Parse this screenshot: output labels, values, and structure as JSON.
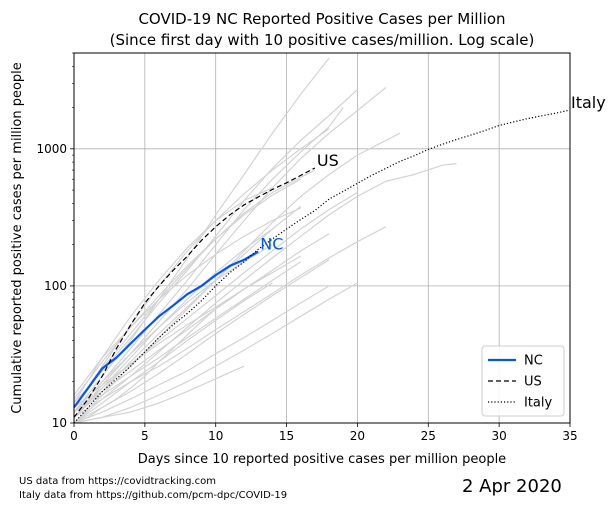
{
  "chart_data": {
    "type": "line",
    "title": "COVID-19 NC Reported Positive Cases per Million",
    "subtitle": "(Since first day with 10 positive cases/million. Log scale)",
    "xlabel": "Days since 10 reported positive cases per million people",
    "ylabel": "Cumulative reported positive cases per million people",
    "xlim": [
      0,
      35
    ],
    "ylim": [
      10,
      5000
    ],
    "yscale": "log",
    "grid": true,
    "x_ticks": [
      0,
      5,
      10,
      15,
      20,
      25,
      30,
      35
    ],
    "y_ticks": [
      10,
      100,
      1000
    ],
    "legend_position": "bottom-right",
    "series": [
      {
        "name": "NC",
        "color": "#0055ff",
        "style": "solid",
        "label": "NC",
        "x": [
          0,
          1,
          2,
          3,
          4,
          5,
          6,
          7,
          8,
          9,
          10,
          11,
          12,
          13
        ],
        "y": [
          13,
          18,
          25,
          30,
          38,
          48,
          60,
          72,
          87,
          100,
          120,
          140,
          155,
          178
        ]
      },
      {
        "name": "US",
        "color": "#000000",
        "style": "dashed",
        "label": "US",
        "x": [
          0,
          1,
          2,
          3,
          4,
          5,
          6,
          7,
          8,
          9,
          10,
          11,
          12,
          13,
          14,
          15,
          16,
          17
        ],
        "y": [
          11,
          15,
          22,
          35,
          52,
          75,
          100,
          130,
          165,
          215,
          270,
          330,
          390,
          445,
          505,
          565,
          640,
          725
        ]
      },
      {
        "name": "Italy",
        "color": "#000000",
        "style": "dotted",
        "label": "Italy",
        "x": [
          0,
          1,
          2,
          3,
          4,
          5,
          6,
          7,
          8,
          9,
          10,
          11,
          12,
          13,
          14,
          15,
          16,
          17,
          18,
          19,
          20,
          21,
          22,
          23,
          24,
          25,
          26,
          27,
          28,
          29,
          30,
          31,
          32,
          33,
          34,
          35
        ],
        "y": [
          10,
          13,
          17,
          21,
          26,
          33,
          42,
          52,
          63,
          78,
          100,
          125,
          150,
          185,
          220,
          260,
          305,
          355,
          430,
          490,
          560,
          640,
          720,
          810,
          890,
          990,
          1080,
          1170,
          1260,
          1360,
          1480,
          1570,
          1660,
          1740,
          1820,
          1920
        ]
      }
    ],
    "background_series_color": "#d3d3d3",
    "background_series": [
      {
        "x": [
          0,
          2,
          4,
          6,
          8,
          10,
          12,
          14,
          16,
          18
        ],
        "y": [
          12,
          22,
          40,
          80,
          160,
          330,
          650,
          1300,
          2500,
          4600
        ]
      },
      {
        "x": [
          0,
          2,
          4,
          6,
          8,
          10,
          12,
          14,
          16,
          18,
          20
        ],
        "y": [
          14,
          24,
          42,
          75,
          130,
          230,
          420,
          720,
          1150,
          1750,
          2700
        ]
      },
      {
        "x": [
          0,
          2,
          4,
          6,
          8,
          10,
          12,
          14,
          16,
          18,
          20,
          22
        ],
        "y": [
          11,
          19,
          32,
          55,
          95,
          170,
          300,
          520,
          850,
          1300,
          1900,
          2800
        ]
      },
      {
        "x": [
          0,
          2,
          4,
          6,
          8,
          10,
          12,
          14,
          16,
          18,
          19
        ],
        "y": [
          12,
          20,
          35,
          62,
          110,
          200,
          360,
          600,
          950,
          1450,
          2000
        ]
      },
      {
        "x": [
          0,
          2,
          4,
          6,
          8,
          10,
          12,
          14,
          16,
          18,
          20,
          22,
          23
        ],
        "y": [
          10,
          16,
          26,
          42,
          68,
          110,
          180,
          290,
          450,
          650,
          900,
          1150,
          1300
        ]
      },
      {
        "x": [
          0,
          2,
          4,
          6,
          8,
          10,
          12,
          14,
          16,
          17
        ],
        "y": [
          13,
          25,
          45,
          80,
          135,
          220,
          340,
          480,
          620,
          700
        ]
      },
      {
        "x": [
          0,
          2,
          4,
          6,
          8,
          10,
          12,
          14,
          16
        ],
        "y": [
          11,
          17,
          28,
          45,
          70,
          110,
          170,
          260,
          380
        ]
      },
      {
        "x": [
          0,
          2,
          4,
          6,
          8,
          10,
          12,
          14,
          16,
          18,
          20
        ],
        "y": [
          12,
          18,
          27,
          40,
          58,
          85,
          125,
          180,
          260,
          360,
          480
        ]
      },
      {
        "x": [
          0,
          2,
          4,
          6,
          8,
          10,
          12,
          14,
          16,
          18,
          20,
          22,
          24,
          26,
          27
        ],
        "y": [
          10,
          15,
          22,
          33,
          50,
          75,
          110,
          160,
          230,
          330,
          450,
          580,
          650,
          760,
          780
        ]
      },
      {
        "x": [
          0,
          2,
          4,
          6,
          8,
          10,
          12,
          14,
          16,
          18
        ],
        "y": [
          10,
          13,
          17,
          23,
          32,
          45,
          62,
          85,
          115,
          155
        ]
      },
      {
        "x": [
          0,
          2,
          4,
          6,
          8,
          10,
          12,
          14,
          16,
          18,
          20,
          22
        ],
        "y": [
          11,
          15,
          20,
          26,
          35,
          48,
          65,
          88,
          120,
          160,
          210,
          270
        ]
      },
      {
        "x": [
          0,
          2,
          4,
          6,
          8,
          10,
          12,
          14,
          16
        ],
        "y": [
          12,
          16,
          22,
          30,
          42,
          58,
          80,
          110,
          150
        ]
      },
      {
        "x": [
          0,
          2,
          4,
          6,
          8,
          10,
          12,
          14,
          16,
          18
        ],
        "y": [
          10,
          12,
          15,
          19,
          24,
          32,
          42,
          56,
          75,
          100
        ]
      },
      {
        "x": [
          0,
          2,
          4,
          6,
          8,
          10,
          12,
          14,
          16,
          18,
          20
        ],
        "y": [
          10,
          11,
          13,
          16,
          20,
          26,
          34,
          45,
          60,
          80,
          105
        ]
      },
      {
        "x": [
          0,
          2,
          4,
          6,
          8,
          10,
          12
        ],
        "y": [
          10,
          11,
          12,
          14,
          17,
          21,
          26
        ]
      },
      {
        "x": [
          0,
          2,
          4,
          6,
          8,
          10,
          12,
          14
        ],
        "y": [
          14,
          30,
          60,
          110,
          190,
          300,
          420,
          520
        ]
      },
      {
        "x": [
          0,
          2,
          4,
          6,
          8,
          10,
          12,
          14,
          16,
          18
        ],
        "y": [
          13,
          26,
          52,
          100,
          180,
          300,
          470,
          700,
          1000,
          1400
        ]
      },
      {
        "x": [
          0,
          2,
          4,
          6,
          8,
          10,
          12,
          14
        ],
        "y": [
          12,
          20,
          32,
          50,
          76,
          110,
          150,
          200
        ]
      },
      {
        "x": [
          0,
          2,
          4,
          6,
          8,
          10,
          12,
          14,
          16
        ],
        "y": [
          15,
          28,
          50,
          85,
          140,
          220,
          330,
          460,
          600
        ]
      },
      {
        "x": [
          0,
          2,
          4,
          6,
          8,
          10,
          12,
          14
        ],
        "y": [
          11,
          18,
          30,
          50,
          80,
          125,
          185,
          260
        ]
      },
      {
        "x": [
          0,
          2,
          4,
          6,
          8,
          10,
          12,
          14,
          16
        ],
        "y": [
          13,
          19,
          27,
          38,
          52,
          70,
          95,
          125,
          165
        ]
      },
      {
        "x": [
          0,
          2,
          4,
          6,
          8,
          10,
          12,
          14
        ],
        "y": [
          10,
          14,
          20,
          28,
          40,
          56,
          78,
          105
        ]
      },
      {
        "x": [
          0,
          2,
          4,
          6,
          8,
          10,
          12,
          14,
          16
        ],
        "y": [
          16,
          30,
          50,
          80,
          120,
          170,
          230,
          300,
          370
        ]
      },
      {
        "x": [
          0,
          2,
          4,
          6,
          8,
          10,
          12,
          14,
          16,
          18
        ],
        "y": [
          12,
          17,
          24,
          34,
          48,
          68,
          95,
          130,
          180,
          240
        ]
      },
      {
        "x": [
          0,
          1,
          2,
          3,
          4,
          5,
          6,
          7,
          8,
          9,
          10,
          11,
          12,
          13,
          14
        ],
        "y": [
          10,
          11,
          13,
          15,
          18,
          22,
          28,
          35,
          44,
          55,
          68,
          80,
          95,
          110,
          125
        ]
      }
    ]
  },
  "footer": {
    "source_us": "US data from https://covidtracking.com",
    "source_italy": "Italy data from https://github.com/pcm-dpc/COVID-19",
    "date": "2 Apr 2020"
  }
}
